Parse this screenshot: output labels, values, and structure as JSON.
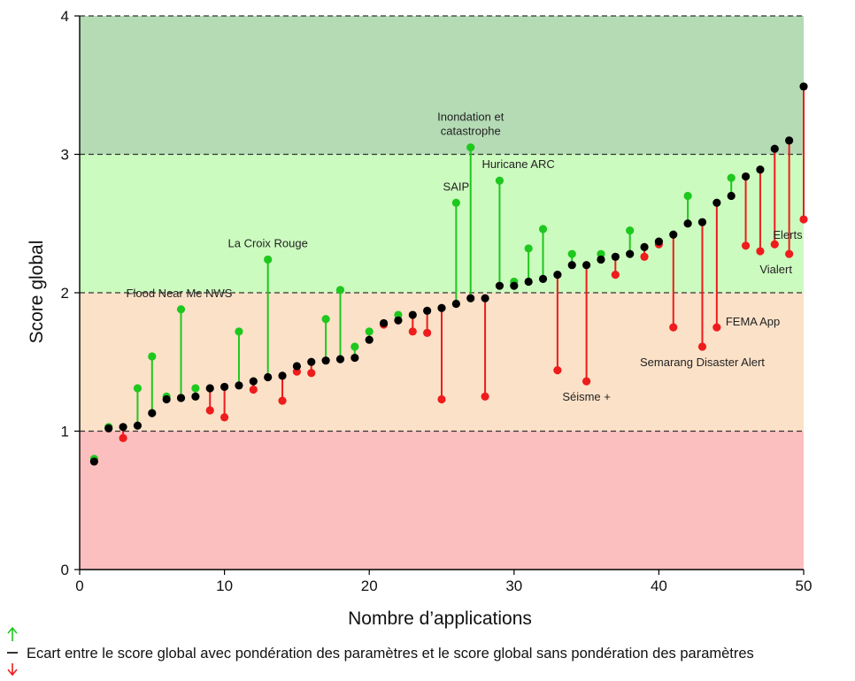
{
  "chart_data": {
    "type": "scatter",
    "xlabel": "Nombre d’applications",
    "ylabel": "Score global",
    "xlim": [
      0,
      50
    ],
    "ylim": [
      0,
      4
    ],
    "xticks": [
      0,
      10,
      20,
      30,
      40,
      50
    ],
    "yticks": [
      0,
      1,
      2,
      3,
      4
    ],
    "dashed_gridlines_y": [
      1,
      2,
      3,
      4
    ],
    "bands": [
      {
        "from": 0,
        "to": 1,
        "color": "#fcbfbf"
      },
      {
        "from": 1,
        "to": 2,
        "color": "#fbe1c8"
      },
      {
        "from": 2,
        "to": 3,
        "color": "#ccfbbf"
      },
      {
        "from": 3,
        "to": 4,
        "color": "#b5dbb5"
      }
    ],
    "colors": {
      "unweighted": "#000000",
      "increase": "#1ec81e",
      "decrease": "#ee1c1c"
    },
    "legend_text": "Ecart entre le score global avec pondération des paramètres et le score global sans pondération des paramètres",
    "points": [
      {
        "x": 1,
        "unweighted": 0.78,
        "weighted": 0.8
      },
      {
        "x": 2,
        "unweighted": 1.02,
        "weighted": 1.03
      },
      {
        "x": 3,
        "unweighted": 1.03,
        "weighted": 0.95
      },
      {
        "x": 4,
        "unweighted": 1.04,
        "weighted": 1.31
      },
      {
        "x": 5,
        "unweighted": 1.13,
        "weighted": 1.54
      },
      {
        "x": 6,
        "unweighted": 1.23,
        "weighted": 1.25
      },
      {
        "x": 7,
        "unweighted": 1.24,
        "weighted": 1.88
      },
      {
        "x": 8,
        "unweighted": 1.25,
        "weighted": 1.31
      },
      {
        "x": 9,
        "unweighted": 1.31,
        "weighted": 1.15
      },
      {
        "x": 10,
        "unweighted": 1.32,
        "weighted": 1.1
      },
      {
        "x": 11,
        "unweighted": 1.33,
        "weighted": 1.72
      },
      {
        "x": 12,
        "unweighted": 1.36,
        "weighted": 1.3
      },
      {
        "x": 13,
        "unweighted": 1.39,
        "weighted": 2.24
      },
      {
        "x": 14,
        "unweighted": 1.4,
        "weighted": 1.22
      },
      {
        "x": 15,
        "unweighted": 1.47,
        "weighted": 1.43
      },
      {
        "x": 16,
        "unweighted": 1.5,
        "weighted": 1.42
      },
      {
        "x": 17,
        "unweighted": 1.51,
        "weighted": 1.81
      },
      {
        "x": 18,
        "unweighted": 1.52,
        "weighted": 2.02
      },
      {
        "x": 19,
        "unweighted": 1.53,
        "weighted": 1.61
      },
      {
        "x": 20,
        "unweighted": 1.66,
        "weighted": 1.72
      },
      {
        "x": 21,
        "unweighted": 1.78,
        "weighted": 1.77
      },
      {
        "x": 22,
        "unweighted": 1.8,
        "weighted": 1.84
      },
      {
        "x": 23,
        "unweighted": 1.84,
        "weighted": 1.72
      },
      {
        "x": 24,
        "unweighted": 1.87,
        "weighted": 1.71
      },
      {
        "x": 25,
        "unweighted": 1.89,
        "weighted": 1.23
      },
      {
        "x": 26,
        "unweighted": 1.92,
        "weighted": 2.65
      },
      {
        "x": 27,
        "unweighted": 1.96,
        "weighted": 3.05
      },
      {
        "x": 28,
        "unweighted": 1.96,
        "weighted": 1.25
      },
      {
        "x": 29,
        "unweighted": 2.05,
        "weighted": 2.81
      },
      {
        "x": 30,
        "unweighted": 2.05,
        "weighted": 2.08
      },
      {
        "x": 31,
        "unweighted": 2.08,
        "weighted": 2.32
      },
      {
        "x": 32,
        "unweighted": 2.1,
        "weighted": 2.46
      },
      {
        "x": 33,
        "unweighted": 2.13,
        "weighted": 1.44
      },
      {
        "x": 34,
        "unweighted": 2.2,
        "weighted": 2.28
      },
      {
        "x": 35,
        "unweighted": 2.2,
        "weighted": 1.36
      },
      {
        "x": 36,
        "unweighted": 2.24,
        "weighted": 2.28
      },
      {
        "x": 37,
        "unweighted": 2.26,
        "weighted": 2.13
      },
      {
        "x": 38,
        "unweighted": 2.28,
        "weighted": 2.45
      },
      {
        "x": 39,
        "unweighted": 2.33,
        "weighted": 2.26
      },
      {
        "x": 40,
        "unweighted": 2.37,
        "weighted": 2.35
      },
      {
        "x": 41,
        "unweighted": 2.42,
        "weighted": 1.75
      },
      {
        "x": 42,
        "unweighted": 2.5,
        "weighted": 2.7
      },
      {
        "x": 43,
        "unweighted": 2.51,
        "weighted": 1.61
      },
      {
        "x": 44,
        "unweighted": 2.65,
        "weighted": 1.75
      },
      {
        "x": 45,
        "unweighted": 2.7,
        "weighted": 2.83
      },
      {
        "x": 46,
        "unweighted": 2.84,
        "weighted": 2.34
      },
      {
        "x": 47,
        "unweighted": 2.89,
        "weighted": 2.3
      },
      {
        "x": 48,
        "unweighted": 3.04,
        "weighted": 2.35
      },
      {
        "x": 49,
        "unweighted": 3.1,
        "weighted": 2.28
      },
      {
        "x": 50,
        "unweighted": 3.49,
        "weighted": 2.53
      }
    ],
    "annotations": [
      {
        "text": "Flood Near Me NWS",
        "x": 7,
        "lines": [
          "Flood Near Me NWS"
        ],
        "pos": "above"
      },
      {
        "text": "La Croix Rouge",
        "x": 13,
        "lines": [
          "La Croix Rouge"
        ],
        "pos": "above"
      },
      {
        "text": "SAIP",
        "x": 26,
        "lines": [
          "SAIP"
        ],
        "pos": "above"
      },
      {
        "text": "Inondation et catastrophe",
        "x": 27,
        "lines": [
          "Inondation et",
          "catastrophe"
        ],
        "pos": "above"
      },
      {
        "text": "Huricane ARC",
        "x": 29,
        "lines": [
          "Huricane ARC"
        ],
        "pos": "above-right"
      },
      {
        "text": "Séisme +",
        "x": 35,
        "lines": [
          "Séisme +"
        ],
        "pos": "below"
      },
      {
        "text": "Semarang Disaster Alert",
        "x": 43,
        "lines": [
          "Semarang Disaster Alert"
        ],
        "pos": "below"
      },
      {
        "text": "FEMA App",
        "x": 44,
        "lines": [
          "FEMA App"
        ],
        "pos": "right"
      },
      {
        "text": "Vialert",
        "x": 49,
        "lines": [
          "Vialert"
        ],
        "pos": "below"
      },
      {
        "text": "Elerts",
        "x": 50,
        "lines": [
          "Elerts"
        ],
        "pos": "below"
      }
    ]
  }
}
